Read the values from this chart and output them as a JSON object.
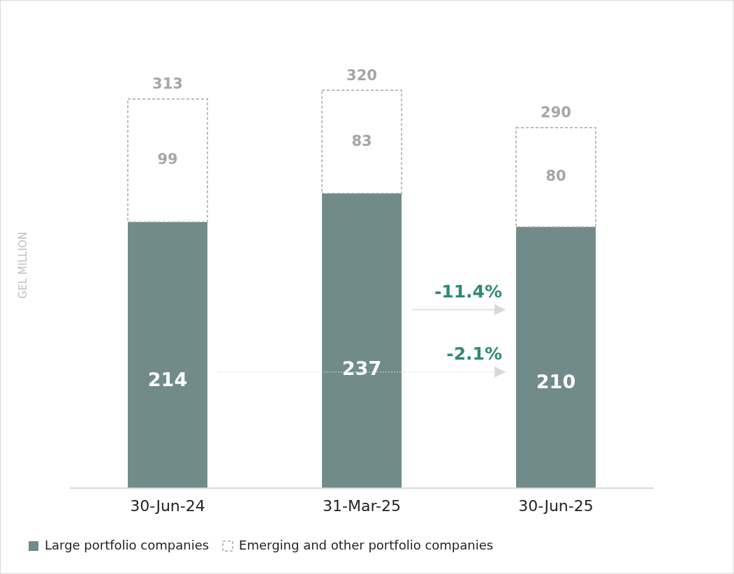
{
  "chart_data": {
    "type": "bar",
    "stacked": true,
    "ylabel": "GEL MILLION",
    "categories": [
      "30-Jun-24",
      "31-Mar-25",
      "30-Jun-25"
    ],
    "series": [
      {
        "name": "Large portfolio companies",
        "color": "#708b8a",
        "values": [
          214,
          237,
          210
        ]
      },
      {
        "name": "Emerging and other portfolio companies",
        "color": "#a6a6a6",
        "line_style": "dashed",
        "values": [
          99,
          83,
          80
        ]
      }
    ],
    "data_labels": true,
    "totals": [
      "313",
      "320",
      "290"
    ],
    "annotations": [
      "-11.4%",
      "-2.1%"
    ],
    "grid": false,
    "legend": "bottom left"
  }
}
